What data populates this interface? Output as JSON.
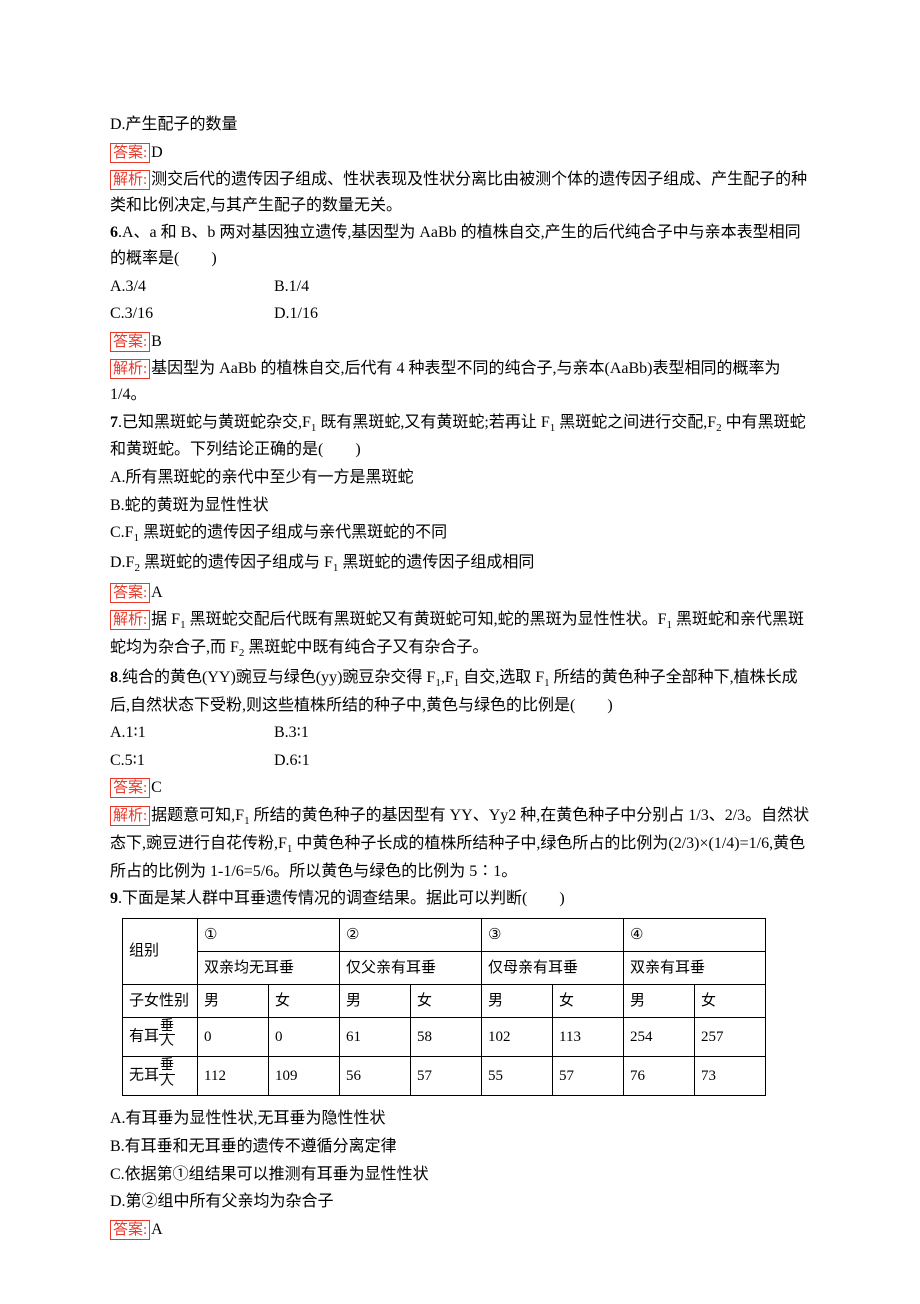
{
  "labels": {
    "answer": "答案:",
    "explain": "解析:"
  },
  "q5_tail": {
    "optD": "D.产生配子的数量",
    "ans": "D",
    "expl": "测交后代的遗传因子组成、性状表现及性状分离比由被测个体的遗传因子组成、产生配子的种类和比例决定,与其产生配子的数量无关。"
  },
  "q6": {
    "num": "6",
    "stem": ".A、a 和 B、b 两对基因独立遗传,基因型为 AaBb 的植株自交,产生的后代纯合子中与亲本表型相同的概率是(　　)",
    "optA": "A.3/4",
    "optB": "B.1/4",
    "optC": "C.3/16",
    "optD": "D.1/16",
    "ans": "B",
    "expl": "基因型为 AaBb 的植株自交,后代有 4 种表型不同的纯合子,与亲本(AaBb)表型相同的概率为 1/4。"
  },
  "q7": {
    "num": "7",
    "stem_a": ".已知黑斑蛇与黄斑蛇杂交,F",
    "stem_b": " 既有黑斑蛇,又有黄斑蛇;若再让 F",
    "stem_c": " 黑斑蛇之间进行交配,F",
    "stem_d": " 中有黑斑蛇和黄斑蛇。下列结论正确的是(　　)",
    "optA": "A.所有黑斑蛇的亲代中至少有一方是黑斑蛇",
    "optB": "B.蛇的黄斑为显性性状",
    "optC_a": "C.F",
    "optC_b": " 黑斑蛇的遗传因子组成与亲代黑斑蛇的不同",
    "optD_a": "D.F",
    "optD_b": " 黑斑蛇的遗传因子组成与 F",
    "optD_c": " 黑斑蛇的遗传因子组成相同",
    "ans": "A",
    "expl_a": "据 F",
    "expl_b": " 黑斑蛇交配后代既有黑斑蛇又有黄斑蛇可知,蛇的黑斑为显性性状。F",
    "expl_c": " 黑斑蛇和亲代黑斑蛇均为杂合子,而 F",
    "expl_d": " 黑斑蛇中既有纯合子又有杂合子。"
  },
  "q8": {
    "num": "8",
    "stem_a": ".纯合的黄色(YY)豌豆与绿色(yy)豌豆杂交得 F",
    "stem_b": ",F",
    "stem_c": " 自交,选取 F",
    "stem_d": " 所结的黄色种子全部种下,植株长成后,自然状态下受粉,则这些植株所结的种子中,黄色与绿色的比例是(　　)",
    "optA": "A.1∶1",
    "optB": "B.3∶1",
    "optC": "C.5∶1",
    "optD": "D.6∶1",
    "ans": "C",
    "expl_a": "据题意可知,F",
    "expl_b": " 所结的黄色种子的基因型有 YY、Yy2 种,在黄色种子中分别占 1/3、2/3。自然状态下,豌豆进行自花传粉,F",
    "expl_c": " 中黄色种子长成的植株所结种子中,绿色所占的比例为(2/3)×(1/4)=1/6,黄色所占的比例为 1-1/6=5/6。所以黄色与绿色的比例为 5∶1。"
  },
  "q9": {
    "num": "9",
    "stem": ".下面是某人群中耳垂遗传情况的调查结果。据此可以判断(　　)",
    "table": {
      "row1_label": "组别",
      "circled": [
        "①",
        "②",
        "③",
        "④"
      ],
      "parents": [
        "双亲均无耳垂",
        "仅父亲有耳垂",
        "仅母亲有耳垂",
        "双亲有耳垂"
      ],
      "row2_label": "子女性别",
      "sex": [
        "男",
        "女"
      ],
      "row3_label_a": "有耳",
      "row3_label_b": "垂",
      "row3_label_c": "人",
      "row4_label_a": "无耳",
      "row4_label_b": "垂",
      "row4_label_c": "人",
      "r3": [
        "0",
        "0",
        "61",
        "58",
        "102",
        "113",
        "254",
        "257"
      ],
      "r4": [
        "112",
        "109",
        "56",
        "57",
        "55",
        "57",
        "76",
        "73"
      ]
    },
    "optA": "A.有耳垂为显性性状,无耳垂为隐性性状",
    "optB": "B.有耳垂和无耳垂的遗传不遵循分离定律",
    "optC": "C.依据第①组结果可以推测有耳垂为显性性状",
    "optD": "D.第②组中所有父亲均为杂合子",
    "ans": "A"
  },
  "style": {
    "accent_color": "#e83828",
    "text_color": "#000000",
    "bg_color": "#ffffff",
    "font_size_pt": 12
  }
}
